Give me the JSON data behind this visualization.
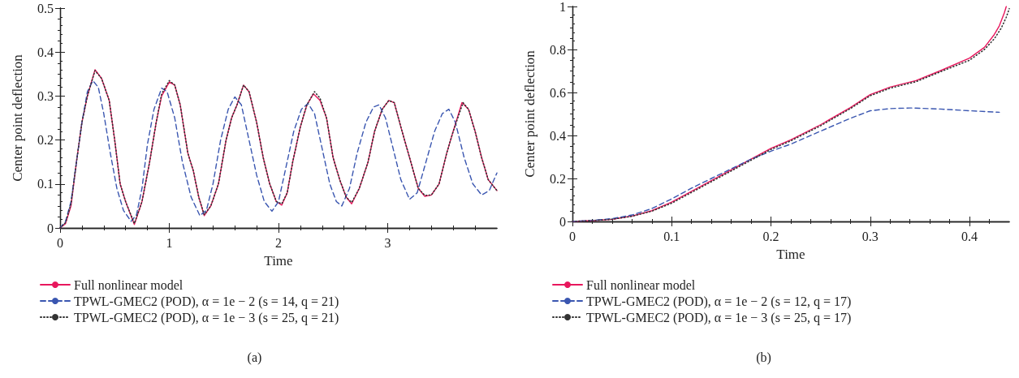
{
  "chart_data": [
    {
      "type": "line",
      "xlabel": "Time",
      "ylabel": "Center point deflection",
      "annotations": [
        "(a)"
      ],
      "xlim": [
        0,
        4
      ],
      "xticks": [
        0,
        1,
        2,
        3
      ],
      "ylim": [
        0,
        0.5
      ],
      "yticks": [
        0,
        0.1,
        0.2,
        0.3,
        0.4,
        0.5
      ],
      "grid": false,
      "legend": "bottom",
      "marker": "none",
      "series": [
        {
          "name": "Full nonlinear model",
          "color": "#e8175d",
          "line_style": "solid",
          "x": [
            0,
            0.05,
            0.1,
            0.15,
            0.2,
            0.25,
            0.32,
            0.38,
            0.45,
            0.5,
            0.55,
            0.6,
            0.68,
            0.75,
            0.82,
            0.88,
            0.93,
            1.0,
            1.05,
            1.1,
            1.17,
            1.22,
            1.27,
            1.32,
            1.38,
            1.45,
            1.52,
            1.57,
            1.62,
            1.68,
            1.73,
            1.8,
            1.86,
            1.92,
            1.98,
            2.03,
            2.08,
            2.13,
            2.2,
            2.26,
            2.32,
            2.38,
            2.44,
            2.5,
            2.56,
            2.62,
            2.67,
            2.74,
            2.82,
            2.88,
            2.95,
            3.01,
            3.06,
            3.12,
            3.2,
            3.28,
            3.34,
            3.4,
            3.47,
            3.54,
            3.6,
            3.68,
            3.74,
            3.8,
            3.86,
            3.92,
            4.0
          ],
          "values": [
            0,
            0.01,
            0.05,
            0.15,
            0.24,
            0.3,
            0.36,
            0.34,
            0.29,
            0.2,
            0.1,
            0.06,
            0.008,
            0.06,
            0.15,
            0.24,
            0.3,
            0.332,
            0.325,
            0.28,
            0.17,
            0.13,
            0.07,
            0.028,
            0.05,
            0.1,
            0.2,
            0.25,
            0.28,
            0.325,
            0.31,
            0.24,
            0.16,
            0.1,
            0.06,
            0.052,
            0.08,
            0.15,
            0.23,
            0.28,
            0.305,
            0.29,
            0.25,
            0.16,
            0.11,
            0.07,
            0.055,
            0.09,
            0.15,
            0.22,
            0.27,
            0.29,
            0.285,
            0.23,
            0.16,
            0.09,
            0.072,
            0.075,
            0.1,
            0.17,
            0.22,
            0.285,
            0.27,
            0.22,
            0.16,
            0.11,
            0.085
          ]
        },
        {
          "name": "TPWL-GMEC2 (POD), α = 1e − 2 (s = 14, q = 21)",
          "color": "#3a56b0",
          "line_style": "dashed",
          "x": [
            0,
            0.05,
            0.1,
            0.15,
            0.2,
            0.25,
            0.3,
            0.35,
            0.4,
            0.46,
            0.52,
            0.58,
            0.65,
            0.7,
            0.75,
            0.8,
            0.86,
            0.93,
            0.98,
            1.05,
            1.12,
            1.2,
            1.28,
            1.34,
            1.4,
            1.47,
            1.54,
            1.6,
            1.66,
            1.73,
            1.8,
            1.87,
            1.94,
            2.0,
            2.07,
            2.14,
            2.21,
            2.27,
            2.33,
            2.4,
            2.47,
            2.53,
            2.58,
            2.65,
            2.72,
            2.8,
            2.87,
            2.92,
            2.98,
            3.05,
            3.12,
            3.2,
            3.27,
            3.35,
            3.43,
            3.5,
            3.56,
            3.62,
            3.7,
            3.78,
            3.86,
            3.93,
            4.0
          ],
          "values": [
            0,
            0.015,
            0.06,
            0.15,
            0.24,
            0.31,
            0.335,
            0.32,
            0.26,
            0.17,
            0.09,
            0.04,
            0.015,
            0.03,
            0.09,
            0.19,
            0.27,
            0.318,
            0.31,
            0.25,
            0.15,
            0.07,
            0.028,
            0.04,
            0.1,
            0.2,
            0.27,
            0.298,
            0.28,
            0.2,
            0.12,
            0.06,
            0.038,
            0.06,
            0.14,
            0.22,
            0.27,
            0.283,
            0.26,
            0.18,
            0.1,
            0.06,
            0.05,
            0.09,
            0.17,
            0.24,
            0.275,
            0.28,
            0.25,
            0.18,
            0.11,
            0.065,
            0.08,
            0.15,
            0.22,
            0.26,
            0.27,
            0.24,
            0.16,
            0.1,
            0.075,
            0.085,
            0.125
          ]
        },
        {
          "name": "TPWL-GMEC2 (POD), α = 1e − 3 (s = 25, q = 21)",
          "color": "#333333",
          "line_style": "dotted",
          "x": [
            0,
            0.05,
            0.1,
            0.15,
            0.2,
            0.25,
            0.32,
            0.38,
            0.45,
            0.5,
            0.55,
            0.6,
            0.68,
            0.75,
            0.82,
            0.88,
            0.93,
            1.0,
            1.05,
            1.1,
            1.17,
            1.22,
            1.27,
            1.32,
            1.38,
            1.45,
            1.52,
            1.57,
            1.62,
            1.68,
            1.73,
            1.8,
            1.86,
            1.92,
            1.98,
            2.03,
            2.08,
            2.13,
            2.2,
            2.26,
            2.33,
            2.38,
            2.44,
            2.5,
            2.56,
            2.62,
            2.67,
            2.74,
            2.82,
            2.88,
            2.95,
            3.01,
            3.06,
            3.12,
            3.2,
            3.28,
            3.34,
            3.4,
            3.47,
            3.54,
            3.6,
            3.69,
            3.74,
            3.8,
            3.86,
            3.92,
            4.0
          ],
          "values": [
            0,
            0.012,
            0.055,
            0.15,
            0.24,
            0.3,
            0.358,
            0.34,
            0.29,
            0.2,
            0.1,
            0.06,
            0.01,
            0.06,
            0.15,
            0.24,
            0.305,
            0.335,
            0.325,
            0.28,
            0.17,
            0.13,
            0.07,
            0.03,
            0.05,
            0.1,
            0.2,
            0.25,
            0.28,
            0.325,
            0.31,
            0.24,
            0.16,
            0.1,
            0.06,
            0.055,
            0.08,
            0.15,
            0.23,
            0.28,
            0.31,
            0.295,
            0.25,
            0.16,
            0.11,
            0.07,
            0.058,
            0.09,
            0.15,
            0.22,
            0.27,
            0.29,
            0.285,
            0.23,
            0.16,
            0.09,
            0.074,
            0.075,
            0.1,
            0.17,
            0.22,
            0.285,
            0.27,
            0.22,
            0.16,
            0.11,
            0.085
          ]
        }
      ]
    },
    {
      "type": "line",
      "xlabel": "Time",
      "ylabel": "Center point deflection",
      "annotations": [
        "(b)"
      ],
      "xlim": [
        0,
        0.44
      ],
      "xticks": [
        0,
        0.1,
        0.2,
        0.3,
        0.4
      ],
      "ylim": [
        0,
        1
      ],
      "yticks": [
        0,
        0.2,
        0.4,
        0.6,
        0.8,
        1
      ],
      "grid": false,
      "legend": "bottom",
      "marker": "none",
      "series": [
        {
          "name": "Full nonlinear model",
          "color": "#e8175d",
          "line_style": "solid",
          "x": [
            0,
            0.02,
            0.04,
            0.06,
            0.08,
            0.1,
            0.12,
            0.14,
            0.16,
            0.18,
            0.2,
            0.22,
            0.25,
            0.28,
            0.3,
            0.32,
            0.346,
            0.37,
            0.4,
            0.415,
            0.425,
            0.43,
            0.435,
            0.437
          ],
          "values": [
            0,
            0.004,
            0.01,
            0.025,
            0.05,
            0.09,
            0.14,
            0.19,
            0.24,
            0.29,
            0.34,
            0.38,
            0.45,
            0.53,
            0.59,
            0.625,
            0.655,
            0.7,
            0.76,
            0.81,
            0.87,
            0.91,
            0.97,
            1.0
          ]
        },
        {
          "name": "TPWL-GMEC2 (POD), α = 1e − 2 (s = 12, q = 17)",
          "color": "#3a56b0",
          "line_style": "dashed",
          "x": [
            0,
            0.02,
            0.04,
            0.06,
            0.08,
            0.1,
            0.12,
            0.14,
            0.16,
            0.18,
            0.2,
            0.22,
            0.25,
            0.28,
            0.3,
            0.32,
            0.34,
            0.37,
            0.4,
            0.43
          ],
          "values": [
            0,
            0.005,
            0.013,
            0.03,
            0.06,
            0.105,
            0.155,
            0.2,
            0.245,
            0.29,
            0.327,
            0.36,
            0.42,
            0.48,
            0.515,
            0.525,
            0.528,
            0.523,
            0.515,
            0.508
          ]
        },
        {
          "name": "TPWL-GMEC2 (POD), α = 1e − 3 (s = 25, q = 17)",
          "color": "#333333",
          "line_style": "dotted",
          "x": [
            0,
            0.02,
            0.04,
            0.06,
            0.08,
            0.1,
            0.12,
            0.14,
            0.16,
            0.18,
            0.2,
            0.22,
            0.25,
            0.28,
            0.3,
            0.32,
            0.346,
            0.37,
            0.4,
            0.415,
            0.425,
            0.432,
            0.437,
            0.44
          ],
          "values": [
            0,
            0.004,
            0.01,
            0.024,
            0.048,
            0.085,
            0.135,
            0.185,
            0.235,
            0.285,
            0.335,
            0.375,
            0.445,
            0.525,
            0.585,
            0.62,
            0.65,
            0.695,
            0.75,
            0.8,
            0.85,
            0.9,
            0.95,
            0.99
          ]
        }
      ]
    }
  ]
}
